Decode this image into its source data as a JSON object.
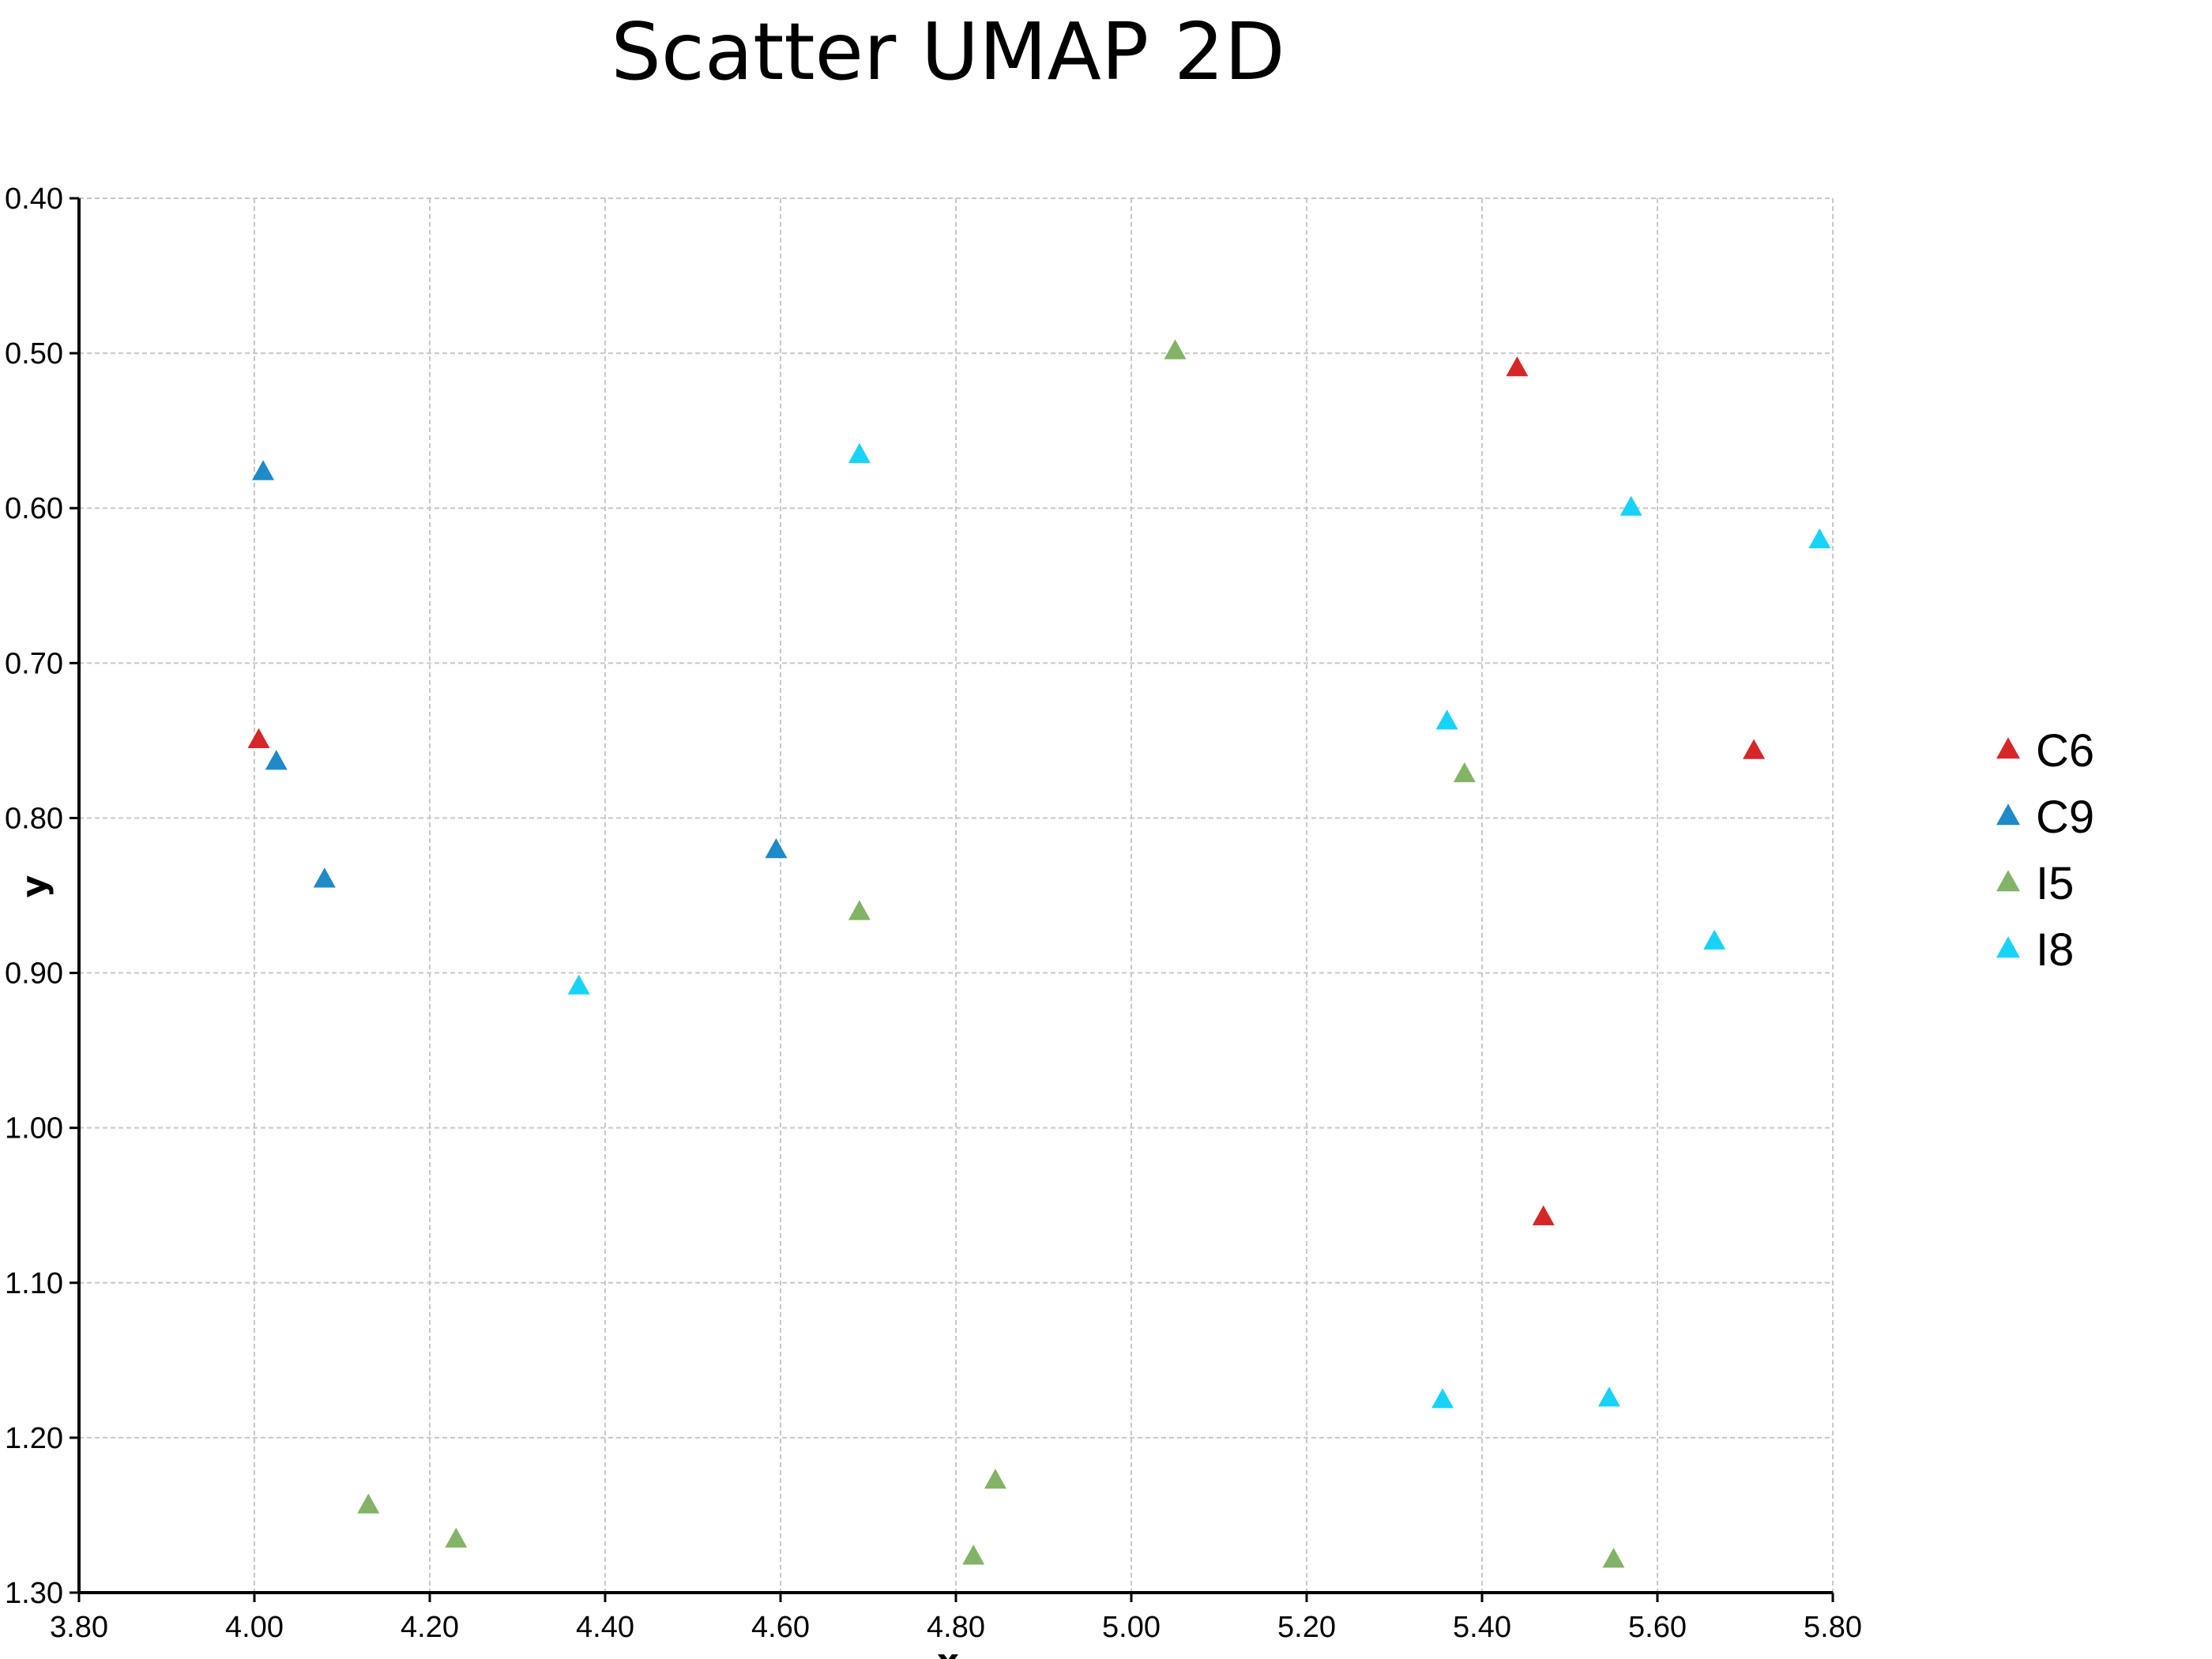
{
  "chart_data": {
    "type": "scatter",
    "title": "Scatter UMAP 2D",
    "xlabel": "x",
    "ylabel": "y",
    "xlim": [
      3.8,
      5.8
    ],
    "ylim": [
      0.4,
      1.3
    ],
    "y_inverted": true,
    "x_ticks": [
      "3.80",
      "4.00",
      "4.20",
      "4.40",
      "4.60",
      "4.80",
      "5.00",
      "5.20",
      "5.40",
      "5.60",
      "5.80"
    ],
    "y_ticks": [
      "0.40",
      "0.50",
      "0.60",
      "0.70",
      "0.80",
      "0.90",
      "1.00",
      "1.10",
      "1.20",
      "1.30"
    ],
    "grid": true,
    "marker": "triangle",
    "legend_position": "right",
    "series": [
      {
        "name": "C6",
        "color": "#d62728",
        "points": [
          [
            4.005,
            0.75
          ],
          [
            5.44,
            0.51
          ],
          [
            5.71,
            0.757
          ],
          [
            5.47,
            1.058
          ]
        ]
      },
      {
        "name": "C9",
        "color": "#1f8ac8",
        "points": [
          [
            4.01,
            0.577
          ],
          [
            4.025,
            0.764
          ],
          [
            4.08,
            0.84
          ],
          [
            4.595,
            0.821
          ]
        ]
      },
      {
        "name": "I5",
        "color": "#82b366",
        "points": [
          [
            5.05,
            0.499
          ],
          [
            5.38,
            0.772
          ],
          [
            4.69,
            0.861
          ],
          [
            4.13,
            1.244
          ],
          [
            4.23,
            1.266
          ],
          [
            4.845,
            1.228
          ],
          [
            4.82,
            1.277
          ],
          [
            5.55,
            1.279
          ]
        ]
      },
      {
        "name": "I8",
        "color": "#17d3f7",
        "points": [
          [
            4.69,
            0.566
          ],
          [
            5.57,
            0.6
          ],
          [
            5.785,
            0.621
          ],
          [
            5.36,
            0.738
          ],
          [
            5.665,
            0.88
          ],
          [
            4.37,
            0.909
          ],
          [
            5.355,
            1.176
          ],
          [
            5.545,
            1.175
          ]
        ]
      }
    ]
  }
}
